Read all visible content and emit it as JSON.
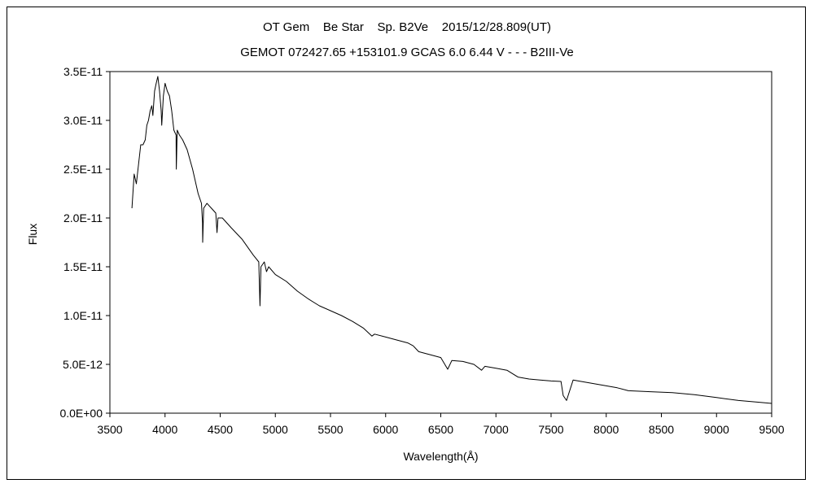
{
  "chart_data": {
    "type": "line",
    "title": "OT Gem    Be Star    Sp. B2Ve    2015/12/28.809(UT)",
    "subtitle": "GEMOT 072427.65 +153101.9 GCAS 6.0 6.44 V - - - B2III-Ve",
    "xlabel": "Wavelength(Å)",
    "ylabel": "Flux",
    "xlim": [
      3500,
      9500
    ],
    "ylim": [
      0,
      3.5e-11
    ],
    "x_ticks": [
      3500,
      4000,
      4500,
      5000,
      5500,
      6000,
      6500,
      7000,
      7500,
      8000,
      8500,
      9000,
      9500
    ],
    "x_tick_labels": [
      "3500",
      "4000",
      "4500",
      "5000",
      "5500",
      "6000",
      "6500",
      "7000",
      "7500",
      "8000",
      "8500",
      "9000",
      "9500"
    ],
    "y_ticks": [
      0,
      5e-12,
      1e-11,
      1.5e-11,
      2e-11,
      2.5e-11,
      3e-11,
      3.5e-11
    ],
    "y_tick_labels": [
      "0.0E+00",
      "5.0E-12",
      "1.0E-11",
      "1.5E-11",
      "2.0E-11",
      "2.5E-11",
      "3.0E-11",
      "3.5E-11"
    ],
    "grid": false,
    "legend": "none",
    "series": [
      {
        "line_color": "#000000",
        "x": [
          3700,
          3720,
          3740,
          3760,
          3780,
          3800,
          3820,
          3835,
          3850,
          3865,
          3880,
          3890,
          3905,
          3920,
          3935,
          3950,
          3965,
          3970,
          3985,
          4000,
          4020,
          4040,
          4060,
          4080,
          4100,
          4102,
          4110,
          4130,
          4160,
          4200,
          4250,
          4300,
          4330,
          4340,
          4341,
          4350,
          4380,
          4420,
          4460,
          4471,
          4480,
          4520,
          4600,
          4700,
          4800,
          4850,
          4861,
          4870,
          4900,
          4920,
          4940,
          5000,
          5100,
          5200,
          5300,
          5400,
          5500,
          5600,
          5700,
          5800,
          5876,
          5900,
          6000,
          6100,
          6200,
          6250,
          6300,
          6400,
          6500,
          6563,
          6600,
          6700,
          6800,
          6870,
          6900,
          7000,
          7100,
          7200,
          7300,
          7400,
          7500,
          7590,
          7610,
          7640,
          7700,
          7800,
          7900,
          8000,
          8100,
          8200,
          8400,
          8600,
          8800,
          9000,
          9200,
          9400,
          9500
        ],
        "y": [
          2.1e-11,
          2.45e-11,
          2.35e-11,
          2.55e-11,
          2.75e-11,
          2.75e-11,
          2.8e-11,
          2.95e-11,
          3e-11,
          3.1e-11,
          3.15e-11,
          3.05e-11,
          3.3e-11,
          3.38e-11,
          3.45e-11,
          3.3e-11,
          3.1e-11,
          2.95e-11,
          3.25e-11,
          3.38e-11,
          3.3e-11,
          3.25e-11,
          3.1e-11,
          2.9e-11,
          2.85e-11,
          2.5e-11,
          2.9e-11,
          2.85e-11,
          2.8e-11,
          2.7e-11,
          2.5e-11,
          2.25e-11,
          2.15e-11,
          1.95e-11,
          1.75e-11,
          2.1e-11,
          2.15e-11,
          2.1e-11,
          2.05e-11,
          1.85e-11,
          2e-11,
          2e-11,
          1.9e-11,
          1.78e-11,
          1.62e-11,
          1.55e-11,
          1.1e-11,
          1.5e-11,
          1.55e-11,
          1.45e-11,
          1.5e-11,
          1.42e-11,
          1.35e-11,
          1.25e-11,
          1.17e-11,
          1.1e-11,
          1.05e-11,
          1e-11,
          9.4e-12,
          8.7e-12,
          7.9e-12,
          8.1e-12,
          7.8e-12,
          7.5e-12,
          7.2e-12,
          6.9e-12,
          6.3e-12,
          6e-12,
          5.7e-12,
          4.5e-12,
          5.4e-12,
          5.3e-12,
          5e-12,
          4.4e-12,
          4.8e-12,
          4.6e-12,
          4.4e-12,
          3.7e-12,
          3.5e-12,
          3.4e-12,
          3.3e-12,
          3.25e-12,
          1.8e-12,
          1.3e-12,
          3.4e-12,
          3.2e-12,
          3e-12,
          2.8e-12,
          2.6e-12,
          2.3e-12,
          2.2e-12,
          2.1e-12,
          1.9e-12,
          1.6e-12,
          1.3e-12,
          1.1e-12,
          1e-12
        ]
      }
    ]
  }
}
